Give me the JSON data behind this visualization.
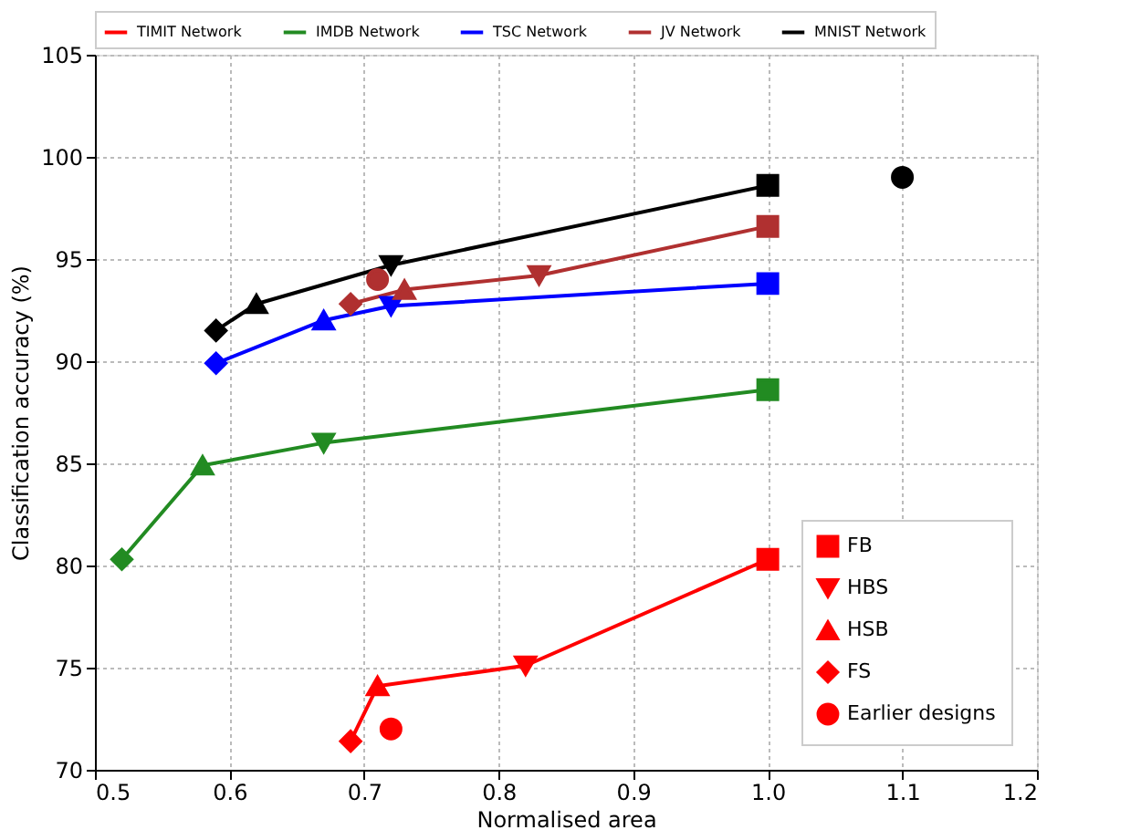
{
  "chart_data": {
    "type": "line",
    "xlabel": "Normalised area",
    "ylabel": "Classification accuracy (%)",
    "xlim": [
      0.5,
      1.2
    ],
    "xticks": [
      0.5,
      0.6,
      0.7,
      0.8,
      0.9,
      {
        "value": 1,
        "label": "1.0"
      },
      1.1,
      1.2
    ],
    "ylim": [
      70,
      105
    ],
    "yticks": [
      70,
      75,
      80,
      85,
      90,
      95,
      100,
      105
    ],
    "grid": true,
    "legend": "top",
    "series": [
      {
        "name": "TIMIT Network",
        "marker": "none",
        "color": "#ff0000",
        "x": [
          1.0,
          0.82,
          0.71,
          0.69
        ],
        "values": [
          80.3,
          75.1,
          74.1,
          71.4
        ]
      },
      {
        "name": "IMDB Network",
        "marker": "none",
        "color": "#228b22",
        "x": [
          1.0,
          0.67,
          0.58,
          0.52
        ],
        "values": [
          88.6,
          86.0,
          84.9,
          80.3
        ]
      },
      {
        "name": "TSC Network",
        "marker": "none",
        "color": "#0000ff",
        "x": [
          1.0,
          0.72,
          0.67,
          0.59
        ],
        "values": [
          93.8,
          92.7,
          92.0,
          89.9
        ]
      },
      {
        "name": "JV Network",
        "marker": "none",
        "color": "#b03030",
        "x": [
          1.0,
          0.83,
          0.73,
          0.69
        ],
        "values": [
          96.6,
          94.2,
          93.5,
          92.8
        ]
      },
      {
        "name": "MNIST Network",
        "marker": "none",
        "color": "#000000",
        "x": [
          1.0,
          0.72,
          0.62,
          0.59
        ],
        "values": [
          98.6,
          94.7,
          92.8,
          91.5
        ]
      },
      {
        "name": "FB",
        "type": "scatter",
        "marker": "square",
        "x": [
          1.0,
          1.0,
          1.0,
          1.0,
          1.0
        ],
        "values": [
          80.3,
          88.6,
          93.8,
          96.6,
          98.6
        ],
        "colors": [
          "#ff0000",
          "#228b22",
          "#0000ff",
          "#b03030",
          "#000000"
        ]
      },
      {
        "name": "HBS",
        "type": "scatter",
        "marker": "triangle_down",
        "x": [
          0.82,
          0.67,
          0.72,
          0.83,
          0.72
        ],
        "values": [
          75.1,
          86.0,
          92.7,
          94.2,
          94.7
        ],
        "colors": [
          "#ff0000",
          "#228b22",
          "#0000ff",
          "#b03030",
          "#000000"
        ]
      },
      {
        "name": "HSB",
        "type": "scatter",
        "marker": "triangle",
        "x": [
          0.71,
          0.58,
          0.67,
          0.73,
          0.62
        ],
        "values": [
          74.1,
          84.9,
          92.0,
          93.5,
          92.8
        ],
        "colors": [
          "#ff0000",
          "#228b22",
          "#0000ff",
          "#b03030",
          "#000000"
        ]
      },
      {
        "name": "FS",
        "type": "scatter",
        "marker": "diamond",
        "x": [
          0.69,
          0.52,
          0.59,
          0.69,
          0.59
        ],
        "values": [
          71.4,
          80.3,
          89.9,
          92.8,
          91.5
        ],
        "colors": [
          "#ff0000",
          "#228b22",
          "#0000ff",
          "#b03030",
          "#000000"
        ]
      },
      {
        "name": "Earlier designs",
        "type": "scatter",
        "marker": "circle",
        "x": [
          0.72,
          0.71,
          1.1
        ],
        "values": [
          72.0,
          94.0,
          99.0
        ],
        "colors": [
          "#ff0000",
          "#b03030",
          "#000000"
        ]
      }
    ]
  }
}
